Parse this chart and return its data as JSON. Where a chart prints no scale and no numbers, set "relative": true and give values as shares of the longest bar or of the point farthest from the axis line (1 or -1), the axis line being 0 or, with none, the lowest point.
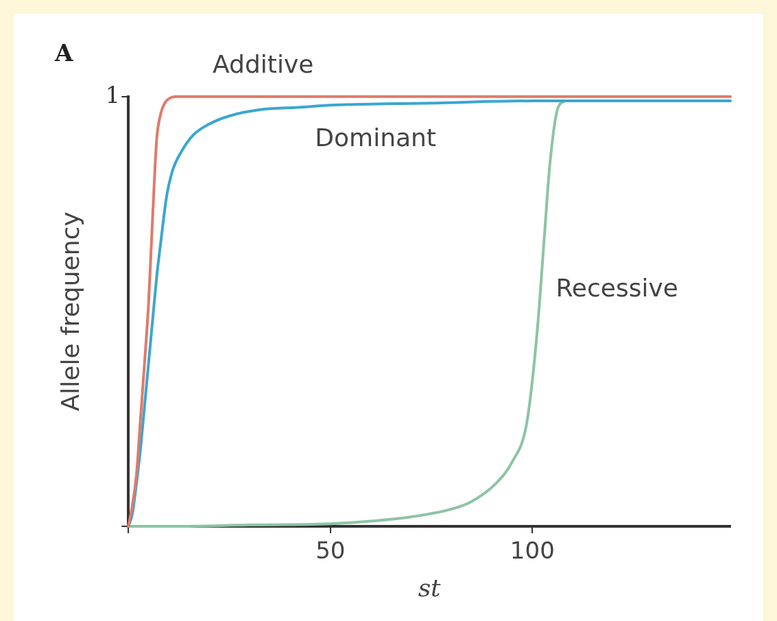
{
  "chart_data": {
    "type": "line",
    "title": "A",
    "xlabel": "st",
    "ylabel": "Allele frequency",
    "annotations": [
      "1"
    ],
    "relative": true,
    "xlim": [
      0,
      149
    ],
    "xticks": [
      {
        "value": 0,
        "label": null
      },
      50,
      100
    ],
    "grid": false,
    "legend": false,
    "marker": "none",
    "line_style": "solid",
    "series": [
      {
        "name": "Additive",
        "color": "#e07a6a",
        "x": [
          0,
          1,
          2,
          3,
          4,
          5,
          6,
          7,
          8,
          9,
          10,
          12,
          20,
          149
        ],
        "values": [
          0,
          0.05,
          0.12,
          0.25,
          0.38,
          0.52,
          0.72,
          0.9,
          0.96,
          0.985,
          0.995,
          1,
          1,
          1
        ]
      },
      {
        "name": "Dominant",
        "color": "#3aa6d0",
        "x": [
          0,
          1,
          2,
          3,
          4,
          5,
          6,
          7,
          8,
          9.5,
          11,
          13,
          16,
          20,
          25,
          33,
          42,
          50,
          75,
          100,
          149
        ],
        "values": [
          0,
          0.03,
          0.1,
          0.18,
          0.28,
          0.38,
          0.48,
          0.58,
          0.66,
          0.77,
          0.83,
          0.87,
          0.91,
          0.936,
          0.955,
          0.97,
          0.975,
          0.98,
          0.985,
          0.99,
          0.99
        ]
      },
      {
        "name": "Recessive",
        "color": "#8cc4a4",
        "x": [
          0,
          10,
          30,
          50,
          60,
          70,
          80,
          85,
          91,
          95,
          98.4,
          100,
          101.6,
          103,
          104.3,
          106.2,
          108
        ],
        "values": [
          0,
          0,
          0.003,
          0.006,
          0.012,
          0.022,
          0.04,
          0.058,
          0.1,
          0.15,
          0.23,
          0.34,
          0.5,
          0.68,
          0.84,
          0.97,
          0.99
        ]
      }
    ]
  }
}
